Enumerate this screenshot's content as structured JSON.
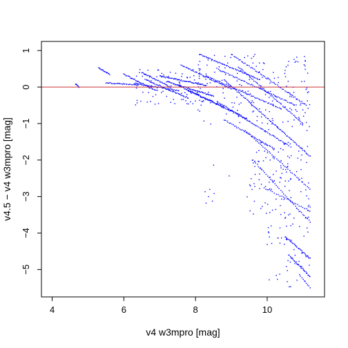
{
  "chart_data": {
    "type": "scatter",
    "title": "",
    "xlabel": "v4 w3mpro [mag]",
    "ylabel": "v4.5 − v4 w3mpro [mag]",
    "xlim": [
      3.7,
      11.6
    ],
    "ylim": [
      -5.75,
      1.25
    ],
    "x_ticks": [
      4,
      6,
      8,
      10
    ],
    "y_ticks": [
      1,
      0,
      -1,
      -2,
      -3,
      -4,
      -5
    ],
    "x_tick_labels": [
      "4",
      "6",
      "8",
      "10"
    ],
    "y_tick_labels": [
      "1",
      "0",
      "−1",
      "−2",
      "−3",
      "−4",
      "−5"
    ],
    "grid": false,
    "legend": "none",
    "reference_line": {
      "y": 0,
      "color": "#cc3333"
    },
    "point_color": "#0000ff",
    "frame_color": "#000000",
    "streaks": [
      {
        "x_start": 4.65,
        "x_end": 4.75,
        "y_start": 0.08,
        "y_end": 0.0,
        "n": 8
      },
      {
        "x_start": 5.3,
        "x_end": 5.6,
        "y_start": 0.52,
        "y_end": 0.35,
        "n": 16
      },
      {
        "x_start": 5.5,
        "x_end": 6.4,
        "y_start": 0.12,
        "y_end": 0.05,
        "n": 30
      },
      {
        "x_start": 6.0,
        "x_end": 6.9,
        "y_start": 0.35,
        "y_end": -0.1,
        "n": 34
      },
      {
        "x_start": 6.3,
        "x_end": 7.5,
        "y_start": 0.1,
        "y_end": -0.1,
        "n": 40
      },
      {
        "x_start": 6.5,
        "x_end": 7.3,
        "y_start": 0.4,
        "y_end": 0.0,
        "n": 30
      },
      {
        "x_start": 6.6,
        "x_end": 7.8,
        "y_start": 0.2,
        "y_end": -0.3,
        "n": 44
      },
      {
        "x_start": 7.0,
        "x_end": 8.3,
        "y_start": 0.3,
        "y_end": 0.05,
        "n": 50
      },
      {
        "x_start": 7.2,
        "x_end": 8.5,
        "y_start": 0.15,
        "y_end": -0.25,
        "n": 55
      },
      {
        "x_start": 7.5,
        "x_end": 8.8,
        "y_start": 0.05,
        "y_end": -0.55,
        "n": 55
      },
      {
        "x_start": 7.6,
        "x_end": 9.0,
        "y_start": 0.6,
        "y_end": -0.05,
        "n": 45
      },
      {
        "x_start": 7.8,
        "x_end": 9.4,
        "y_start": -0.1,
        "y_end": -0.85,
        "n": 50
      },
      {
        "x_start": 8.1,
        "x_end": 9.8,
        "y_start": 0.9,
        "y_end": 0.2,
        "n": 55
      },
      {
        "x_start": 8.3,
        "x_end": 10.4,
        "y_start": 0.3,
        "y_end": -0.6,
        "n": 60
      },
      {
        "x_start": 8.6,
        "x_end": 10.8,
        "y_start": 0.5,
        "y_end": -0.5,
        "n": 60
      },
      {
        "x_start": 8.8,
        "x_end": 11.2,
        "y_start": 0.2,
        "y_end": -1.9,
        "n": 85
      },
      {
        "x_start": 8.6,
        "x_end": 10.6,
        "y_start": -0.4,
        "y_end": -1.6,
        "n": 60
      },
      {
        "x_start": 9.0,
        "x_end": 11.1,
        "y_start": 0.9,
        "y_end": -0.5,
        "n": 60
      },
      {
        "x_start": 9.2,
        "x_end": 11.0,
        "y_start": 0.55,
        "y_end": -1.0,
        "n": 55
      },
      {
        "x_start": 8.8,
        "x_end": 10.2,
        "y_start": -0.9,
        "y_end": -1.7,
        "n": 40
      },
      {
        "x_start": 9.4,
        "x_end": 11.2,
        "y_start": -1.2,
        "y_end": -2.8,
        "n": 45
      },
      {
        "x_start": 9.6,
        "x_end": 11.2,
        "y_start": -2.0,
        "y_end": -3.7,
        "n": 40
      },
      {
        "x_start": 10.0,
        "x_end": 11.2,
        "y_start": -2.8,
        "y_end": -3.4,
        "n": 25
      },
      {
        "x_start": 10.5,
        "x_end": 11.2,
        "y_start": -4.1,
        "y_end": -4.7,
        "n": 30
      },
      {
        "x_start": 10.6,
        "x_end": 11.2,
        "y_start": -4.6,
        "y_end": -5.2,
        "n": 30
      },
      {
        "x_start": 10.9,
        "x_end": 11.2,
        "y_start": -5.15,
        "y_end": -5.5,
        "n": 10
      }
    ],
    "scatter_regions": [
      {
        "x_range": [
          6.2,
          8.2
        ],
        "y_range": [
          -0.5,
          0.5
        ],
        "n": 80
      },
      {
        "x_range": [
          8.0,
          11.2
        ],
        "y_range": [
          -1.2,
          0.9
        ],
        "n": 170
      },
      {
        "x_range": [
          9.5,
          11.2
        ],
        "y_range": [
          -3.6,
          -1.5
        ],
        "n": 120
      },
      {
        "x_range": [
          10.0,
          11.2
        ],
        "y_range": [
          -5.5,
          -3.7
        ],
        "n": 45
      },
      {
        "x_range": [
          8.2,
          9.8
        ],
        "y_range": [
          -3.2,
          -2.0
        ],
        "n": 12
      }
    ]
  }
}
